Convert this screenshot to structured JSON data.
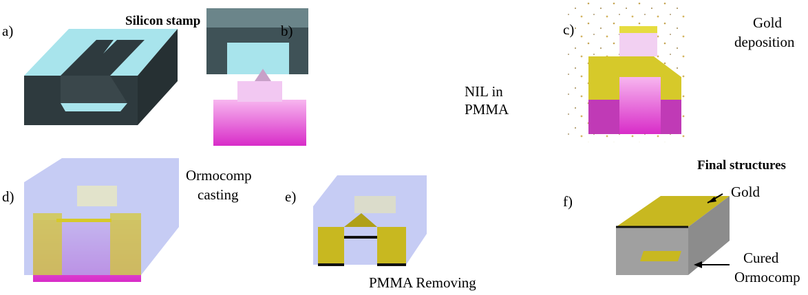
{
  "panels": [
    {
      "label": "a)",
      "caption": [
        "Silicon stamp"
      ]
    },
    {
      "label": "b)",
      "caption": [
        "NIL in",
        "PMMA"
      ]
    },
    {
      "label": "c)",
      "caption": [
        "Gold",
        "deposition"
      ]
    },
    {
      "label": "d)",
      "caption": [
        "Ormocomp",
        "casting"
      ]
    },
    {
      "label": "e)",
      "caption": [
        "PMMA Removing"
      ]
    },
    {
      "label": "f)",
      "caption": [
        "Final structures"
      ],
      "annotations": [
        [
          "Gold"
        ],
        [
          "Cured",
          "Ormocomp"
        ]
      ]
    }
  ]
}
